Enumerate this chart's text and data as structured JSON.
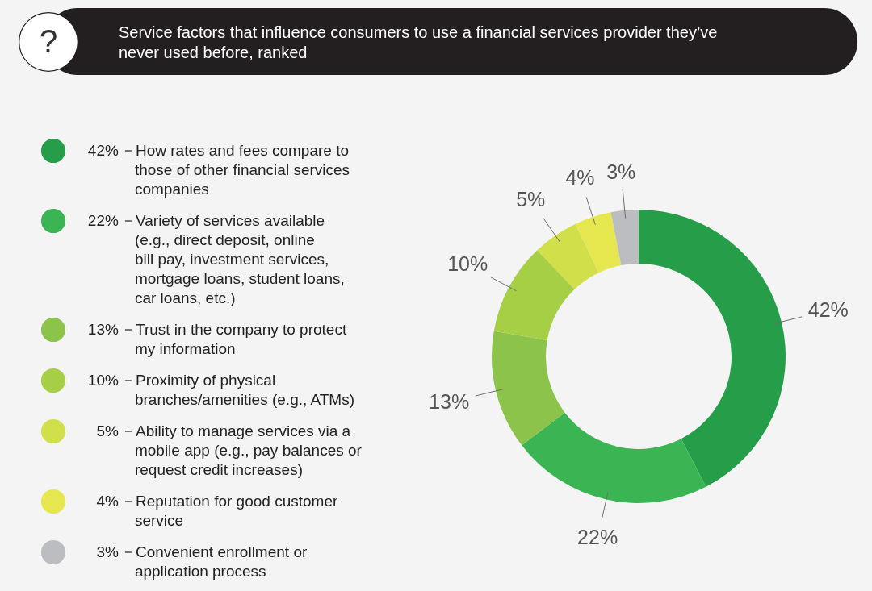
{
  "chart_data": {
    "type": "donut",
    "title": "Service factors that influence consumers to use a financial services provider they’ve never used before, ranked",
    "categories": [
      "How rates and fees compare to those of other financial services companies",
      "Variety of services available (e.g., direct deposit, online bill pay, investment services, mortgage loans, student loans, car loans, etc.)",
      "Trust in the company to protect my information",
      "Proximity of physical branches/amenities (e.g., ATMs)",
      "Ability to manage services via a mobile app (e.g., pay balances or request credit increases)",
      "Reputation for good customer service",
      "Convenient enrollment or application process"
    ],
    "values": [
      42,
      22,
      13,
      10,
      5,
      4,
      3
    ],
    "value_labels": [
      "42%",
      "22%",
      "13%",
      "10%",
      "5%",
      "4%",
      "3%"
    ],
    "colors": [
      "#259d49",
      "#3bb553",
      "#8bc34b",
      "#a7cf46",
      "#d1df4b",
      "#e6e74f",
      "#bcbdc0"
    ],
    "legend": "left",
    "annotations": [
      "?"
    ]
  }
}
